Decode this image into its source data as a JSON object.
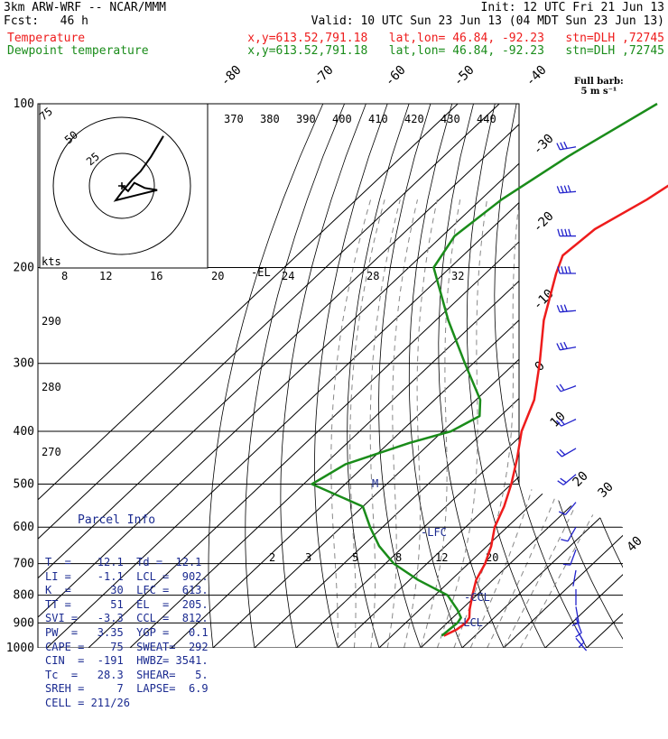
{
  "header": {
    "model": "3km ARW-WRF -- NCAR/MMM",
    "init": "Init: 12 UTC Fri 21 Jun 13",
    "fcst": "Fcst:   46 h",
    "valid": "Valid: 10 UTC Sun 23 Jun 13 (04 MDT Sun 23 Jun 13)",
    "temp_label": "Temperature",
    "dew_label": "Dewpoint temperature",
    "temp_info": "x,y=613.52,791.18   lat,lon= 46.84, -92.23   stn=DLH ,72745",
    "dew_info": "x,y=613.52,791.18   lat,lon= 46.84, -92.23   stn=DLH ,72745"
  },
  "colors": {
    "temperature": "#ee1c1c",
    "dewpoint": "#1a8c1a",
    "wind": "#2222cc",
    "grid": "#000000",
    "dash": "#888888"
  },
  "hodograph": {
    "units": "kts",
    "ring_labels": [
      "25",
      "50",
      "75"
    ]
  },
  "wind_key": {
    "title": "Full barb:",
    "value": "5 m s⁻¹"
  },
  "parcel_info": {
    "title": "Parcel Info",
    "rows": [
      "T  =    12.1  Td =  12.1",
      "LI =    -1.1  LCL =  902.",
      "K  =      30  LFC =  613.",
      "TT =      51  EL  =  205.",
      "SVI =   -3.3  CCL =  812.",
      "PW  =   3.35  YGP =   0.1",
      "CAPE =    75  SWEAT=  292",
      "CIN  =  -191  HWBZ= 3541.",
      "Tc  =   28.3  SHEAR=   5.",
      "SREH =     7  LAPSE=  6.9",
      "CELL = 211/26"
    ]
  },
  "chart_data": {
    "type": "line",
    "diagram": "skew-T log-P",
    "pressure_levels": [
      100,
      200,
      300,
      400,
      500,
      600,
      700,
      800,
      900,
      1000
    ],
    "isotherm_labels": [
      "-80",
      "-70",
      "-60",
      "-50",
      "-40",
      "-30",
      "-20",
      "-10",
      "0",
      "10",
      "20",
      "30",
      "40"
    ],
    "theta_labels": [
      "370",
      "380",
      "390",
      "400",
      "410",
      "420",
      "430",
      "440"
    ],
    "theta_e_labels": [
      "8",
      "12",
      "16",
      "20",
      "24",
      "28",
      "32"
    ],
    "mixing_ratio_labels": [
      "2",
      "3",
      "5",
      "8",
      "12",
      "20"
    ],
    "height_labels": [
      "290",
      "280",
      "270"
    ],
    "annotations": [
      "EL",
      "M",
      "LFC",
      "CCL",
      "LCL"
    ],
    "series": [
      {
        "name": "Temperature",
        "color": "#ee1c1c",
        "points": [
          [
            100,
            -36
          ],
          [
            110,
            -40
          ],
          [
            125,
            -45
          ],
          [
            150,
            -50
          ],
          [
            170,
            -55
          ],
          [
            190,
            -56
          ],
          [
            205,
            -53
          ],
          [
            250,
            -44
          ],
          [
            300,
            -34
          ],
          [
            350,
            -26
          ],
          [
            400,
            -21
          ],
          [
            450,
            -15
          ],
          [
            500,
            -10
          ],
          [
            550,
            -6
          ],
          [
            600,
            -3
          ],
          [
            650,
            1
          ],
          [
            700,
            4
          ],
          [
            750,
            6
          ],
          [
            800,
            9
          ],
          [
            850,
            12
          ],
          [
            880,
            14
          ],
          [
            900,
            14.5
          ],
          [
            925,
            14
          ],
          [
            950,
            12.5
          ]
        ]
      },
      {
        "name": "Dewpoint temperature",
        "color": "#1a8c1a",
        "points": [
          [
            100,
            -72
          ],
          [
            125,
            -80
          ],
          [
            150,
            -85
          ],
          [
            175,
            -87
          ],
          [
            200,
            -84
          ],
          [
            250,
            -67
          ],
          [
            300,
            -52
          ],
          [
            350,
            -39
          ],
          [
            375,
            -35
          ],
          [
            400,
            -38
          ],
          [
            420,
            -45
          ],
          [
            460,
            -55
          ],
          [
            500,
            -58
          ],
          [
            550,
            -40
          ],
          [
            600,
            -33
          ],
          [
            650,
            -26
          ],
          [
            700,
            -18
          ],
          [
            750,
            -8
          ],
          [
            800,
            3
          ],
          [
            850,
            9
          ],
          [
            880,
            12
          ],
          [
            900,
            12.5
          ],
          [
            925,
            12.2
          ],
          [
            950,
            12
          ]
        ]
      }
    ],
    "hodograph_points": [
      [
        0,
        0
      ],
      [
        6,
        -5
      ],
      [
        12,
        3
      ],
      [
        22,
        -2
      ],
      [
        34,
        -4
      ],
      [
        18,
        -8
      ],
      [
        -6,
        -14
      ],
      [
        0,
        -6
      ],
      [
        10,
        6
      ],
      [
        18,
        14
      ],
      [
        28,
        28
      ],
      [
        40,
        48
      ]
    ],
    "wind_barbs": [
      {
        "p": 120,
        "dir": 260,
        "spd": 35
      },
      {
        "p": 145,
        "dir": 265,
        "spd": 40
      },
      {
        "p": 175,
        "dir": 270,
        "spd": 45
      },
      {
        "p": 205,
        "dir": 270,
        "spd": 40
      },
      {
        "p": 240,
        "dir": 265,
        "spd": 35
      },
      {
        "p": 280,
        "dir": 260,
        "spd": 30
      },
      {
        "p": 330,
        "dir": 250,
        "spd": 28
      },
      {
        "p": 380,
        "dir": 245,
        "spd": 26
      },
      {
        "p": 430,
        "dir": 240,
        "spd": 24
      },
      {
        "p": 480,
        "dir": 230,
        "spd": 20
      },
      {
        "p": 540,
        "dir": 220,
        "spd": 16
      },
      {
        "p": 600,
        "dir": 210,
        "spd": 12
      },
      {
        "p": 660,
        "dir": 200,
        "spd": 10
      },
      {
        "p": 720,
        "dir": 190,
        "spd": 8
      },
      {
        "p": 780,
        "dir": 180,
        "spd": 8
      },
      {
        "p": 840,
        "dir": 170,
        "spd": 10
      },
      {
        "p": 880,
        "dir": 160,
        "spd": 12
      },
      {
        "p": 920,
        "dir": 150,
        "spd": 10
      },
      {
        "p": 960,
        "dir": 140,
        "spd": 8
      }
    ]
  }
}
